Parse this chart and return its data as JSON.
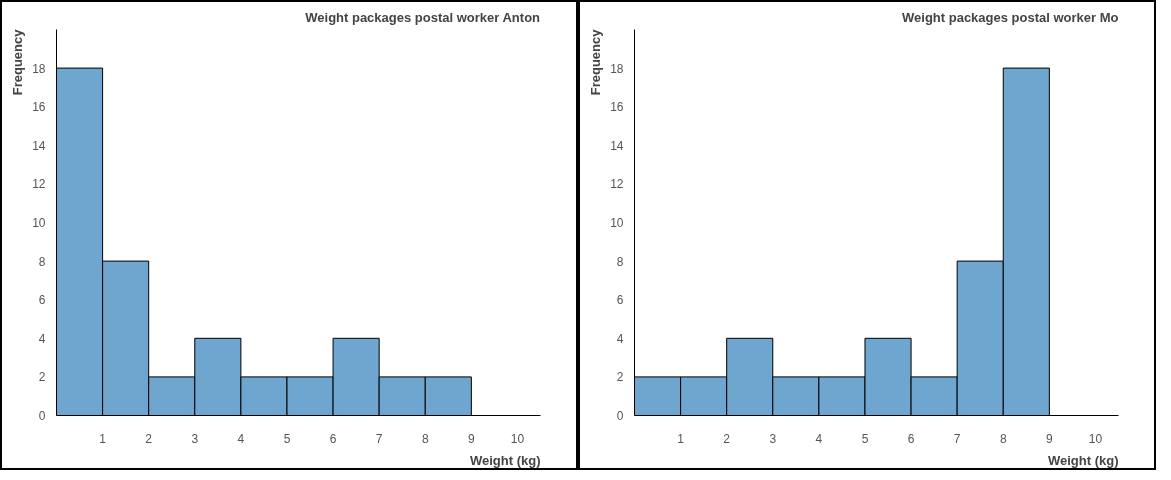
{
  "chart_data": [
    {
      "type": "histogram",
      "title": "Weight packages postal worker Anton",
      "xlabel": "Weight (kg)",
      "ylabel": "Frequency",
      "bins": [
        0,
        1,
        2,
        3,
        4,
        5,
        6,
        7,
        8,
        9
      ],
      "values": [
        18,
        8,
        2,
        4,
        2,
        2,
        4,
        2,
        2
      ],
      "color": "#6ea6cf",
      "xlim": [
        0,
        10.5
      ],
      "ylim": [
        0,
        20
      ],
      "xticks": [
        1,
        2,
        3,
        4,
        5,
        6,
        7,
        8,
        9,
        10
      ],
      "yticks": [
        0,
        2,
        4,
        6,
        8,
        10,
        12,
        14,
        16,
        18
      ],
      "grid": false
    },
    {
      "type": "histogram",
      "title": "Weight packages postal worker Mo",
      "xlabel": "Weight (kg)",
      "ylabel": "Frequency",
      "bins": [
        0,
        1,
        2,
        3,
        4,
        5,
        6,
        7,
        8,
        9
      ],
      "values": [
        2,
        2,
        4,
        2,
        2,
        4,
        2,
        8,
        18
      ],
      "color": "#6ea6cf",
      "xlim": [
        0,
        10.5
      ],
      "ylim": [
        0,
        20
      ],
      "xticks": [
        1,
        2,
        3,
        4,
        5,
        6,
        7,
        8,
        9,
        10
      ],
      "yticks": [
        0,
        2,
        4,
        6,
        8,
        10,
        12,
        14,
        16,
        18
      ],
      "grid": false
    }
  ]
}
